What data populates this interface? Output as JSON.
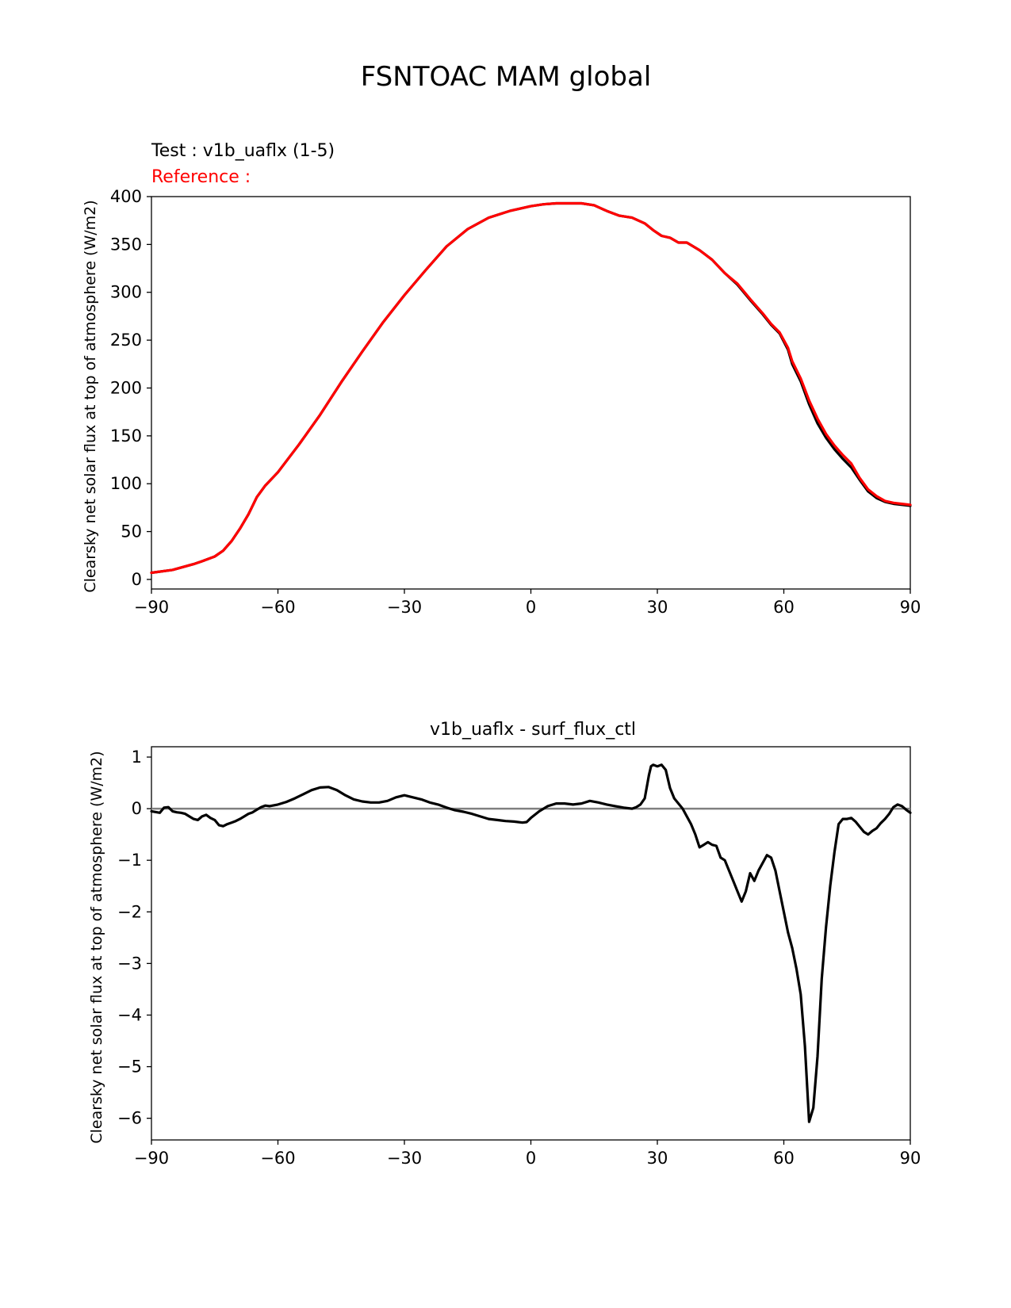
{
  "figure": {
    "title": "FSNTOAC MAM global"
  },
  "chart_data": [
    {
      "type": "line",
      "test_label": "Test : v1b_uaflx (1-5)",
      "reference_label": "Reference :",
      "title": "",
      "xlabel": "",
      "ylabel": "Clearsky net solar flux at top of atmosphere (W/m2)",
      "xlim": [
        -90,
        90
      ],
      "ylim": [
        -10,
        400
      ],
      "xticks": [
        -90,
        -60,
        -30,
        0,
        30,
        60,
        90
      ],
      "xtick_labels": [
        "−90",
        "−60",
        "−30",
        "0",
        "30",
        "60",
        "90"
      ],
      "yticks": [
        0,
        50,
        100,
        150,
        200,
        250,
        300,
        350,
        400
      ],
      "ytick_labels": [
        "0",
        "50",
        "100",
        "150",
        "200",
        "250",
        "300",
        "350",
        "400"
      ],
      "series": [
        {
          "name": "test",
          "color": "#000000",
          "x": [
            -90,
            -85,
            -80,
            -78,
            -75,
            -73,
            -71,
            -69,
            -67,
            -65,
            -63,
            -60,
            -55,
            -50,
            -45,
            -40,
            -35,
            -30,
            -25,
            -20,
            -15,
            -10,
            -5,
            0,
            3,
            6,
            9,
            12,
            15,
            18,
            21,
            24,
            27,
            29,
            31,
            33,
            35,
            37,
            40,
            43,
            46,
            49,
            52,
            55,
            57,
            59,
            61,
            62,
            64,
            66,
            68,
            70,
            72,
            74,
            76,
            78,
            80,
            82,
            84,
            86,
            90
          ],
          "y": [
            7,
            10,
            16,
            19,
            24,
            30,
            40,
            53,
            68,
            86,
            98,
            112,
            141,
            172,
            206,
            238,
            269,
            297,
            323,
            348,
            366,
            378,
            385,
            390,
            392,
            393,
            393,
            393,
            391,
            385,
            380,
            378,
            372,
            365,
            359,
            357,
            352,
            352,
            344,
            334,
            320,
            308,
            292,
            277,
            266,
            257,
            240,
            225,
            207,
            183,
            163,
            148,
            136,
            126,
            117,
            104,
            92,
            85,
            81,
            79,
            77
          ]
        },
        {
          "name": "reference",
          "color": "#ff0000",
          "x": [
            -90,
            -85,
            -80,
            -78,
            -75,
            -73,
            -71,
            -69,
            -67,
            -65,
            -63,
            -60,
            -55,
            -50,
            -45,
            -40,
            -35,
            -30,
            -25,
            -20,
            -15,
            -10,
            -5,
            0,
            3,
            6,
            9,
            12,
            15,
            18,
            21,
            24,
            27,
            29,
            31,
            33,
            35,
            37,
            40,
            43,
            46,
            49,
            52,
            55,
            57,
            59,
            61,
            62,
            64,
            66,
            68,
            70,
            72,
            74,
            76,
            78,
            80,
            82,
            84,
            86,
            90
          ],
          "y": [
            7,
            10,
            16,
            19,
            24,
            30,
            40,
            53,
            68,
            86,
            98,
            112,
            141,
            172,
            206,
            238,
            269,
            297,
            323,
            348,
            366,
            378,
            385,
            390,
            392,
            393,
            393,
            393,
            391,
            385,
            380,
            378,
            372,
            365,
            359,
            357,
            352,
            352,
            344,
            334,
            320,
            309,
            293,
            278,
            267,
            258,
            242,
            228,
            210,
            187,
            168,
            152,
            140,
            130,
            121,
            106,
            94,
            87,
            82,
            80,
            78
          ]
        }
      ]
    },
    {
      "type": "line",
      "title": "v1b_uaflx - surf_flux_ctl",
      "xlabel": "",
      "ylabel": "Clearsky net solar flux at top of atmosphere (W/m2)",
      "xlim": [
        -90,
        90
      ],
      "ylim": [
        -6.42,
        1.2
      ],
      "xticks": [
        -90,
        -60,
        -30,
        0,
        30,
        60,
        90
      ],
      "xtick_labels": [
        "−90",
        "−60",
        "−30",
        "0",
        "30",
        "60",
        "90"
      ],
      "yticks": [
        1,
        0,
        -1,
        -2,
        -3,
        -4,
        -5,
        -6
      ],
      "ytick_labels": [
        "1",
        "0",
        "−1",
        "−2",
        "−3",
        "−4",
        "−5",
        "−6"
      ],
      "zero_line_color": "#808080",
      "series": [
        {
          "name": "difference",
          "color": "#000000",
          "x": [
            -90,
            -88,
            -87,
            -86,
            -85,
            -84,
            -83,
            -82,
            -81,
            -80,
            -79,
            -78,
            -77,
            -76,
            -75,
            -74,
            -73,
            -72,
            -71,
            -70,
            -69,
            -68,
            -67,
            -66,
            -65,
            -64,
            -63,
            -62,
            -60,
            -58,
            -56,
            -54,
            -52,
            -50,
            -48,
            -46,
            -44,
            -42,
            -40,
            -38,
            -36,
            -34,
            -32,
            -30,
            -28,
            -26,
            -24,
            -22,
            -20,
            -18,
            -16,
            -14,
            -12,
            -10,
            -8,
            -6,
            -4,
            -2,
            -1,
            0,
            2,
            4,
            6,
            8,
            10,
            12,
            14,
            16,
            18,
            20,
            22,
            24,
            25,
            26,
            27,
            28,
            28.5,
            29,
            30,
            31,
            32,
            33,
            34,
            35,
            36,
            37,
            38,
            39,
            40,
            41,
            42,
            43,
            44,
            45,
            46,
            47,
            48,
            49,
            50,
            51,
            52,
            53,
            54,
            55,
            56,
            57,
            58,
            59,
            60,
            61,
            62,
            63,
            64,
            65,
            66,
            67,
            68,
            69,
            70,
            71,
            72,
            73,
            74,
            75,
            76,
            77,
            78,
            79,
            80,
            81,
            82,
            83,
            84,
            85,
            86,
            87,
            88,
            89,
            90
          ],
          "y": [
            -0.05,
            -0.08,
            0.02,
            0.03,
            -0.05,
            -0.07,
            -0.08,
            -0.1,
            -0.15,
            -0.2,
            -0.22,
            -0.15,
            -0.12,
            -0.18,
            -0.22,
            -0.32,
            -0.34,
            -0.3,
            -0.27,
            -0.24,
            -0.2,
            -0.15,
            -0.1,
            -0.07,
            -0.02,
            0.03,
            0.06,
            0.05,
            0.08,
            0.13,
            0.2,
            0.28,
            0.36,
            0.41,
            0.42,
            0.36,
            0.26,
            0.18,
            0.14,
            0.12,
            0.12,
            0.15,
            0.22,
            0.26,
            0.22,
            0.18,
            0.12,
            0.08,
            0.02,
            -0.03,
            -0.06,
            -0.1,
            -0.15,
            -0.2,
            -0.22,
            -0.24,
            -0.25,
            -0.27,
            -0.26,
            -0.18,
            -0.05,
            0.05,
            0.1,
            0.1,
            0.08,
            0.1,
            0.15,
            0.12,
            0.08,
            0.05,
            0.02,
            0.0,
            0.03,
            0.08,
            0.2,
            0.65,
            0.82,
            0.85,
            0.82,
            0.85,
            0.75,
            0.4,
            0.2,
            0.1,
            0.0,
            -0.15,
            -0.3,
            -0.5,
            -0.75,
            -0.7,
            -0.65,
            -0.7,
            -0.72,
            -0.95,
            -1.0,
            -1.2,
            -1.4,
            -1.6,
            -1.8,
            -1.6,
            -1.25,
            -1.4,
            -1.2,
            -1.05,
            -0.9,
            -0.95,
            -1.2,
            -1.6,
            -2.0,
            -2.4,
            -2.7,
            -3.1,
            -3.6,
            -4.6,
            -6.07,
            -5.8,
            -4.8,
            -3.3,
            -2.3,
            -1.5,
            -0.85,
            -0.3,
            -0.2,
            -0.2,
            -0.18,
            -0.25,
            -0.35,
            -0.45,
            -0.5,
            -0.43,
            -0.38,
            -0.28,
            -0.2,
            -0.1,
            0.03,
            0.08,
            0.05,
            -0.02,
            -0.08
          ]
        }
      ]
    }
  ]
}
